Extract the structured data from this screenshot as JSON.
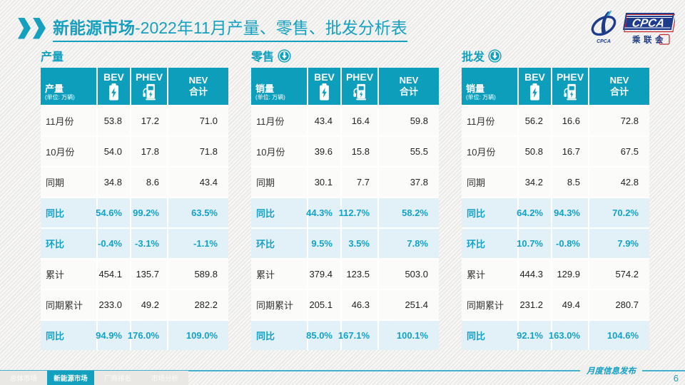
{
  "slide": {
    "title_highlight": "新能源市场",
    "title_rest": "-2022年11月产量、零售、批发分析表",
    "footer_note": "月度信息发布",
    "page_number": "6",
    "watermark": "CPCA 乘联会"
  },
  "logo": {
    "en": "CPCA",
    "cn": "乘联会",
    "icon_caption": "CPCA"
  },
  "colors": {
    "primary": "#0C9EBB",
    "accent_text": "#13A2C6",
    "highlight_row": "#E2F1F8",
    "navy": "#1D3C8C"
  },
  "sections": [
    {
      "title": "产量",
      "arrow": false,
      "header": {
        "first": "产量",
        "unit": "(单位: 万辆)",
        "col_bev": "BEV",
        "col_phev": "PHEV",
        "col_nev_line1": "NEV",
        "col_nev_line2": "合计"
      },
      "rows": [
        {
          "label": "11月份",
          "values": [
            "53.8",
            "17.2",
            "71.0"
          ],
          "highlight": false
        },
        {
          "label": "10月份",
          "values": [
            "54.0",
            "17.8",
            "71.8"
          ],
          "highlight": false
        },
        {
          "label": "同期",
          "values": [
            "34.8",
            "8.6",
            "43.4"
          ],
          "highlight": false
        },
        {
          "label": "同比",
          "values": [
            "54.6%",
            "99.2%",
            "63.5%"
          ],
          "highlight": true
        },
        {
          "label": "环比",
          "values": [
            "-0.4%",
            "-3.1%",
            "-1.1%"
          ],
          "highlight": true
        },
        {
          "label": "累计",
          "values": [
            "454.1",
            "135.7",
            "589.8"
          ],
          "highlight": false
        },
        {
          "label": "同期累计",
          "values": [
            "233.0",
            "49.2",
            "282.2"
          ],
          "highlight": false
        },
        {
          "label": "同比",
          "values": [
            "94.9%",
            "176.0%",
            "109.0%"
          ],
          "highlight": true
        }
      ]
    },
    {
      "title": "零售",
      "arrow": true,
      "header": {
        "first": "销量",
        "unit": "(单位: 万辆)",
        "col_bev": "BEV",
        "col_phev": "PHEV",
        "col_nev_line1": "NEV",
        "col_nev_line2": "合计"
      },
      "rows": [
        {
          "label": "11月份",
          "values": [
            "43.4",
            "16.4",
            "59.8"
          ],
          "highlight": false
        },
        {
          "label": "10月份",
          "values": [
            "39.6",
            "15.8",
            "55.5"
          ],
          "highlight": false
        },
        {
          "label": "同期",
          "values": [
            "30.1",
            "7.7",
            "37.8"
          ],
          "highlight": false
        },
        {
          "label": "同比",
          "values": [
            "44.3%",
            "112.7%",
            "58.2%"
          ],
          "highlight": true
        },
        {
          "label": "环比",
          "values": [
            "9.5%",
            "3.5%",
            "7.8%"
          ],
          "highlight": true
        },
        {
          "label": "累计",
          "values": [
            "379.4",
            "123.5",
            "503.0"
          ],
          "highlight": false
        },
        {
          "label": "同期累计",
          "values": [
            "205.1",
            "46.3",
            "251.4"
          ],
          "highlight": false
        },
        {
          "label": "同比",
          "values": [
            "85.0%",
            "167.1%",
            "100.1%"
          ],
          "highlight": true
        }
      ]
    },
    {
      "title": "批发",
      "arrow": true,
      "header": {
        "first": "销量",
        "unit": "(单位: 万辆)",
        "col_bev": "BEV",
        "col_phev": "PHEV",
        "col_nev_line1": "NEV",
        "col_nev_line2": "合计"
      },
      "rows": [
        {
          "label": "11月份",
          "values": [
            "56.2",
            "16.6",
            "72.8"
          ],
          "highlight": false
        },
        {
          "label": "10月份",
          "values": [
            "50.8",
            "16.7",
            "67.5"
          ],
          "highlight": false
        },
        {
          "label": "同期",
          "values": [
            "34.2",
            "8.5",
            "42.8"
          ],
          "highlight": false
        },
        {
          "label": "同比",
          "values": [
            "64.2%",
            "94.3%",
            "70.2%"
          ],
          "highlight": true
        },
        {
          "label": "环比",
          "values": [
            "10.7%",
            "-0.8%",
            "7.9%"
          ],
          "highlight": true
        },
        {
          "label": "累计",
          "values": [
            "444.3",
            "129.9",
            "574.2"
          ],
          "highlight": false
        },
        {
          "label": "同期累计",
          "values": [
            "231.2",
            "49.4",
            "280.7"
          ],
          "highlight": false
        },
        {
          "label": "同比",
          "values": [
            "92.1%",
            "163.0%",
            "104.6%"
          ],
          "highlight": true
        }
      ]
    }
  ],
  "footer_tabs": [
    {
      "label": "总体市场",
      "active": false
    },
    {
      "label": "新能源市场",
      "active": true
    },
    {
      "label": "厂商排名",
      "active": false
    },
    {
      "label": "市场分析",
      "active": false
    }
  ]
}
